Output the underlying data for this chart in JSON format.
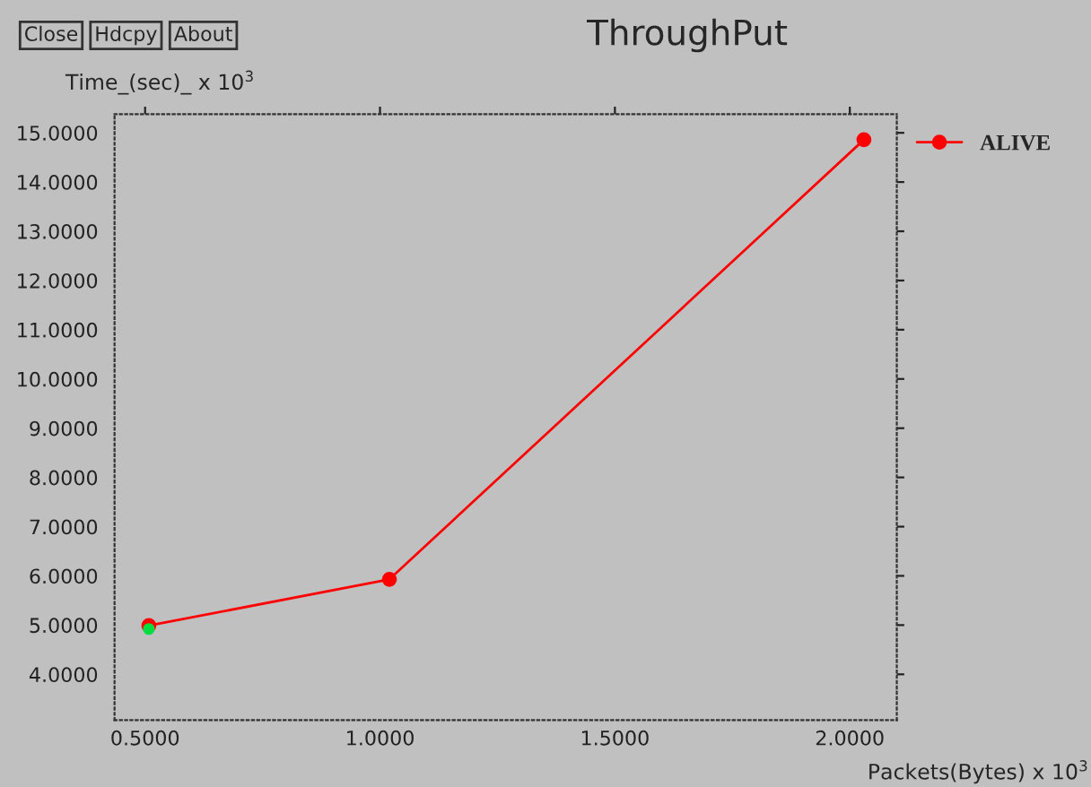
{
  "chart_data": {
    "type": "line",
    "title": "ThroughPut",
    "xlabel": "Packets(Bytes) x 10$^{3}$",
    "ylabel": "Time_(sec)_ x 10$^{3}$",
    "annotations": [
      "Close",
      "Hdcpy",
      "About"
    ],
    "series": [
      {
        "name": "ALIVE",
        "color": "#ff0000",
        "x": [
          0.508,
          1.02,
          2.03
        ],
        "values": [
          4.99,
          5.93,
          14.86
        ]
      },
      {
        "type": "scatter",
        "color": "#00dd44",
        "x": [
          0.508
        ],
        "values": [
          4.92
        ]
      }
    ],
    "xlim": [
      0.435,
      2.1
    ],
    "ylim": [
      3.07,
      15.38
    ],
    "xticks": [
      {
        "value": 0.5,
        "label": "0.5000"
      },
      {
        "value": 1.0,
        "label": "1.0000"
      },
      {
        "value": 1.5,
        "label": "1.5000"
      },
      {
        "value": 2.0,
        "label": "2.0000"
      }
    ],
    "yticks": [
      {
        "value": 4,
        "label": "4.0000"
      },
      {
        "value": 5,
        "label": "5.0000"
      },
      {
        "value": 6,
        "label": "6.0000"
      },
      {
        "value": 7,
        "label": "7.0000"
      },
      {
        "value": 8,
        "label": "8.0000"
      },
      {
        "value": 9,
        "label": "9.0000"
      },
      {
        "value": 10,
        "label": "10.0000"
      },
      {
        "value": 11,
        "label": "11.0000"
      },
      {
        "value": 12,
        "label": "12.0000"
      },
      {
        "value": 13,
        "label": "13.0000"
      },
      {
        "value": 14,
        "label": "14.0000"
      },
      {
        "value": 15,
        "label": "15.0000"
      }
    ],
    "marker": "circle",
    "line_style": "solid",
    "grid": false,
    "legend": "right"
  }
}
